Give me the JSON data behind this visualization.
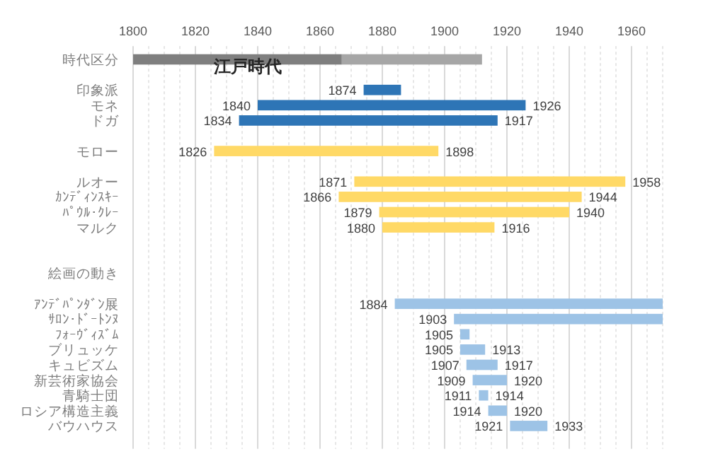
{
  "chart_data": {
    "type": "bar",
    "orientation": "horizontal",
    "categories": [
      "時代区分",
      null,
      "印象派",
      "モネ",
      "ドガ",
      null,
      "モロー",
      null,
      "ルオー",
      "ｶﾝﾃﾞｨﾝｽｷｰ",
      "ﾊﾟｳﾙ･ｸﾚｰ",
      "マルク",
      null,
      null,
      "絵画の動き",
      null,
      "ｱﾝﾃﾞﾊﾟﾝﾀﾞﾝ展",
      "ｻﾛﾝ･ﾄﾞｰﾄﾝﾇ",
      "ﾌｫｰｳﾞｨｽﾞﾑ",
      "ブリュッケ",
      "キュビズム",
      "新芸術家協会",
      "青騎士団",
      "ロシア構造主義",
      "バウハウス",
      null
    ],
    "series": [
      {
        "base": [
          1800,
          null,
          1874,
          1840,
          1834,
          null,
          1826,
          null,
          1871,
          1866,
          1879,
          1880,
          null,
          null,
          null,
          null,
          1884,
          1903,
          1905,
          1905,
          1907,
          1909,
          1911,
          1914,
          1921,
          null
        ],
        "values": [
          67,
          null,
          12,
          86,
          83,
          null,
          72,
          null,
          87,
          78,
          61,
          36,
          null,
          null,
          null,
          null,
          86,
          67,
          3,
          8,
          10,
          11,
          3,
          6,
          12,
          null
        ],
        "colors": [
          "#7f7f7f",
          null,
          "#2e75b6",
          "#2e75b6",
          "#2e75b6",
          null,
          "#ffd966",
          null,
          "#ffd966",
          "#ffd966",
          "#ffd966",
          "#ffd966",
          null,
          null,
          null,
          null,
          "#9dc3e6",
          "#9dc3e6",
          "#9dc3e6",
          "#9dc3e6",
          "#9dc3e6",
          "#9dc3e6",
          "#9dc3e6",
          "#9dc3e6",
          "#9dc3e6",
          null
        ],
        "value_labels": [
          null,
          null,
          null,
          "1926",
          "1917",
          null,
          "1898",
          null,
          "1958",
          "1944",
          "1940",
          "1916",
          null,
          null,
          null,
          null,
          null,
          null,
          null,
          "1913",
          "1917",
          "1920",
          "1914",
          "1920",
          "1933",
          null
        ]
      },
      {
        "base": [
          1867,
          null,
          null,
          null,
          null,
          null,
          null,
          null,
          null,
          null,
          null,
          null,
          null,
          null,
          null,
          null,
          null,
          null,
          null,
          null,
          null,
          null,
          null,
          null,
          null,
          null
        ],
        "values": [
          45,
          null,
          null,
          null,
          null,
          null,
          null,
          null,
          null,
          null,
          null,
          null,
          null,
          null,
          null,
          null,
          null,
          null,
          null,
          null,
          null,
          null,
          null,
          null,
          null,
          null
        ],
        "color": "#a6a6a6"
      }
    ],
    "annotations": [
      {
        "text": "江戸時代",
        "x": 1826,
        "y": "時代区分"
      },
      {
        "text": "1874",
        "x": 1874,
        "y": "印象派"
      },
      {
        "text": "1840",
        "x": 1840,
        "y": "モネ"
      },
      {
        "text": "1834",
        "x": 1834,
        "y": "ドガ"
      },
      {
        "text": "1826",
        "x": 1826,
        "y": "モロー"
      },
      {
        "text": "1871",
        "x": 1871,
        "y": "ルオー"
      },
      {
        "text": "1866",
        "x": 1866,
        "y": "ｶﾝﾃﾞｨﾝｽｷｰ"
      },
      {
        "text": "1879",
        "x": 1879,
        "y": "ﾊﾟｳﾙ･ｸﾚｰ"
      },
      {
        "text": "1880",
        "x": 1880,
        "y": "マルク"
      },
      {
        "text": "1884",
        "x": 1884,
        "y": "ｱﾝﾃﾞﾊﾟﾝﾀﾞﾝ展"
      },
      {
        "text": "1903",
        "x": 1903,
        "y": "ｻﾛﾝ･ﾄﾞｰﾄﾝﾇ"
      },
      {
        "text": "1905",
        "x": 1905,
        "y": "ﾌｫｰｳﾞｨｽﾞﾑ"
      },
      {
        "text": "1905",
        "x": 1905,
        "y": "ブリュッケ"
      },
      {
        "text": "1907",
        "x": 1907,
        "y": "キュビズム"
      },
      {
        "text": "1909",
        "x": 1909,
        "y": "新芸術家協会"
      },
      {
        "text": "1911",
        "x": 1911,
        "y": "青騎士団"
      },
      {
        "text": "1914",
        "x": 1914,
        "y": "ロシア構造主義"
      },
      {
        "text": "1921",
        "x": 1921,
        "y": "バウハウス"
      }
    ],
    "xlim": [
      1800,
      1970
    ],
    "xticks": [
      1800,
      1820,
      1840,
      1860,
      1880,
      1900,
      1920,
      1940,
      1960
    ],
    "grid": "x"
  }
}
